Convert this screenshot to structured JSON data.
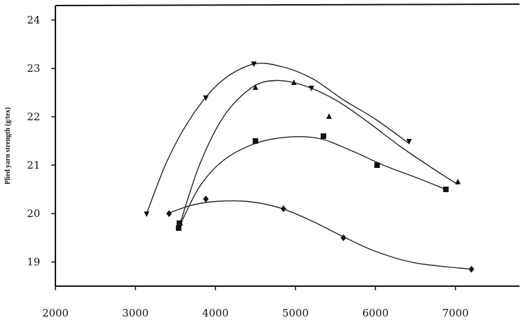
{
  "chart_data": {
    "type": "scatter",
    "title": "",
    "xlabel": "",
    "ylabel": "Plied yarn strength (g/tex)",
    "xlim": [
      2000,
      7800
    ],
    "ylim": [
      18.5,
      24.3
    ],
    "x_ticks": [
      "2000",
      "3000",
      "4000",
      "5000",
      "6000",
      "7000"
    ],
    "x_tick_values": [
      2000,
      3000,
      4000,
      5000,
      6000,
      7000
    ],
    "y_ticks": [
      "19",
      "20",
      "21",
      "22",
      "23",
      "24"
    ],
    "y_tick_values": [
      19,
      20,
      21,
      22,
      23,
      24
    ],
    "grid": false,
    "legend": "none",
    "series": [
      {
        "marker": "diamond",
        "points": [
          [
            3420,
            20.0
          ],
          [
            3880,
            20.3
          ],
          [
            4850,
            20.1
          ],
          [
            5600,
            19.5
          ],
          [
            7200,
            18.85
          ]
        ],
        "curve": [
          [
            3400,
            20.0
          ],
          [
            3700,
            20.17
          ],
          [
            4000,
            20.25
          ],
          [
            4400,
            20.25
          ],
          [
            4800,
            20.12
          ],
          [
            5200,
            19.85
          ],
          [
            5600,
            19.52
          ],
          [
            6000,
            19.22
          ],
          [
            6500,
            18.98
          ],
          [
            7200,
            18.85
          ]
        ]
      },
      {
        "marker": "square",
        "points": [
          [
            3540,
            19.7
          ],
          [
            3550,
            19.8
          ],
          [
            4500,
            21.5
          ],
          [
            5350,
            21.6
          ],
          [
            6020,
            21.0
          ],
          [
            6880,
            20.5
          ]
        ],
        "curve": [
          [
            3540,
            19.7
          ],
          [
            3800,
            20.55
          ],
          [
            4100,
            21.1
          ],
          [
            4500,
            21.45
          ],
          [
            4900,
            21.58
          ],
          [
            5300,
            21.55
          ],
          [
            5700,
            21.3
          ],
          [
            6100,
            21.0
          ],
          [
            6500,
            20.75
          ],
          [
            6880,
            20.5
          ]
        ]
      },
      {
        "marker": "triangle-up",
        "points": [
          [
            3560,
            19.8
          ],
          [
            4500,
            22.6
          ],
          [
            4980,
            22.7
          ],
          [
            5420,
            22.0
          ],
          [
            7030,
            20.65
          ]
        ],
        "curve": [
          [
            3550,
            19.75
          ],
          [
            3800,
            21.0
          ],
          [
            4100,
            22.0
          ],
          [
            4450,
            22.6
          ],
          [
            4750,
            22.75
          ],
          [
            5100,
            22.65
          ],
          [
            5500,
            22.35
          ],
          [
            5900,
            21.9
          ],
          [
            6300,
            21.4
          ],
          [
            6700,
            20.95
          ],
          [
            7030,
            20.6
          ]
        ]
      },
      {
        "marker": "triangle-down",
        "points": [
          [
            3140,
            20.0
          ],
          [
            3880,
            22.4
          ],
          [
            4480,
            23.1
          ],
          [
            5200,
            22.6
          ],
          [
            6420,
            21.5
          ]
        ],
        "curve": [
          [
            3140,
            20.0
          ],
          [
            3400,
            21.1
          ],
          [
            3700,
            22.0
          ],
          [
            4050,
            22.7
          ],
          [
            4450,
            23.08
          ],
          [
            4800,
            23.05
          ],
          [
            5200,
            22.8
          ],
          [
            5600,
            22.35
          ],
          [
            6000,
            21.95
          ],
          [
            6420,
            21.45
          ]
        ]
      }
    ]
  }
}
